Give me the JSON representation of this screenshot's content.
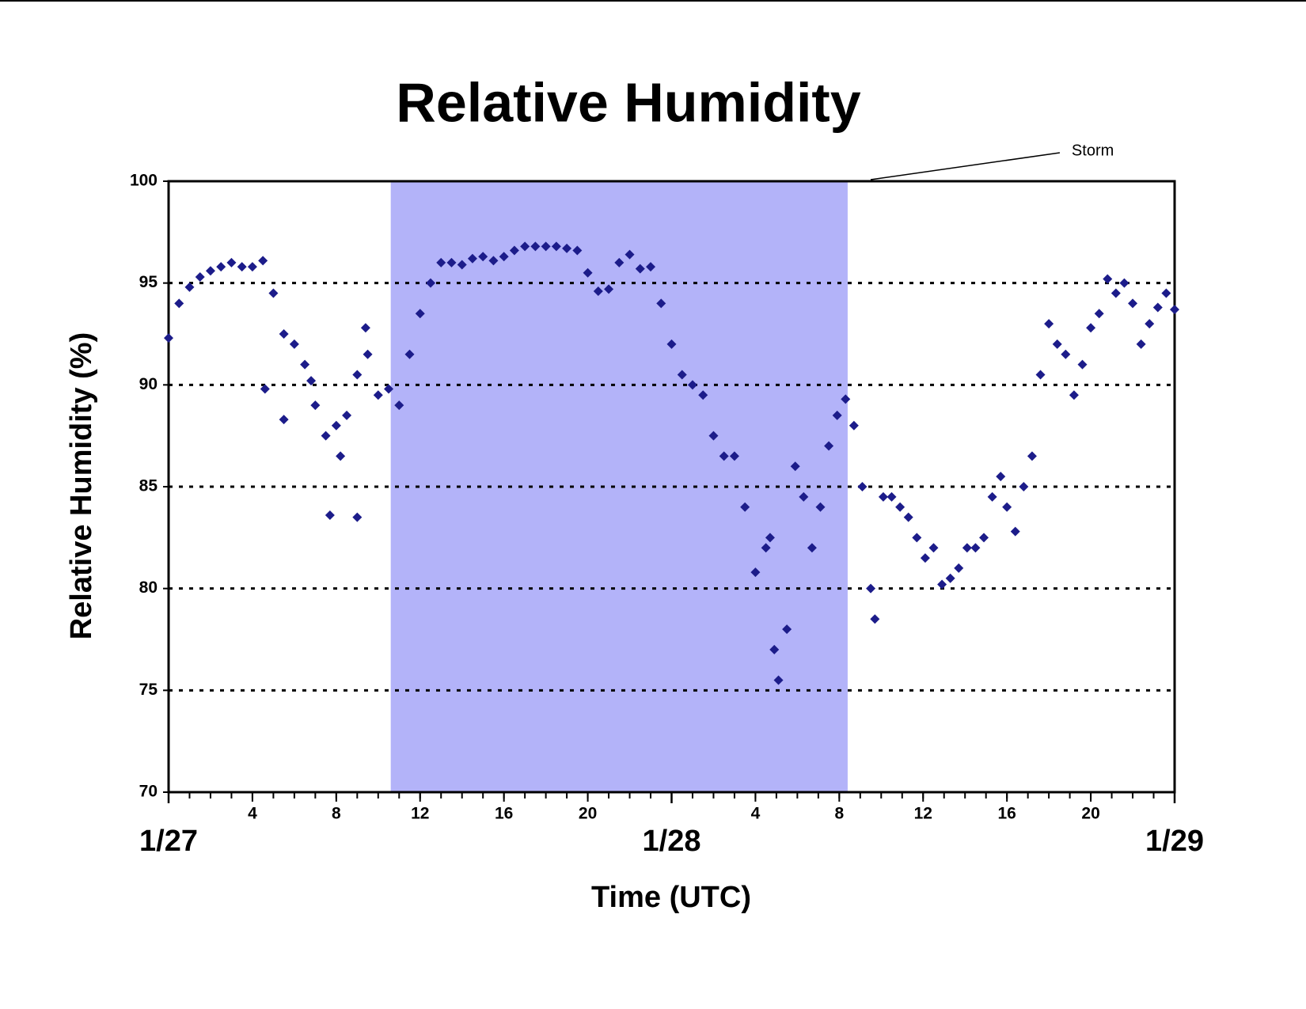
{
  "chart_data": {
    "type": "scatter",
    "title": "Relative Humidity",
    "y_label": "Relative Humidity (%)",
    "x_label": "Time (UTC)",
    "xlim": [
      0,
      48
    ],
    "ylim": [
      70,
      100
    ],
    "yticks": [
      70,
      75,
      80,
      85,
      90,
      95,
      100
    ],
    "grid": true,
    "xticks": [
      4,
      8,
      12,
      16,
      20,
      {
        "value": 28,
        "label": "4"
      },
      {
        "value": 32,
        "label": "8"
      },
      {
        "value": 36,
        "label": "12"
      },
      {
        "value": 40,
        "label": "16"
      },
      {
        "value": 44,
        "label": "20"
      }
    ],
    "xminorticks": [
      0,
      1,
      2,
      3,
      4,
      5,
      6,
      7,
      8,
      9,
      10,
      11,
      12,
      13,
      14,
      15,
      16,
      17,
      18,
      19,
      20,
      21,
      22,
      23,
      24,
      25,
      26,
      27,
      28,
      29,
      30,
      31,
      32,
      33,
      34,
      35,
      36,
      37,
      38,
      39,
      40,
      41,
      42,
      43,
      44,
      45,
      46,
      47,
      48
    ],
    "xdate_labels": [
      {
        "value": 0,
        "label": "1/27"
      },
      {
        "value": 24,
        "label": "1/28"
      },
      {
        "value": 48,
        "label": "1/29"
      }
    ],
    "shaded_region": {
      "label": "Storm",
      "x": [
        10.6,
        32.4
      ],
      "color": "#b3b3f9"
    },
    "series": [
      {
        "name": "Relative Humidity",
        "color": "#1c1c8a",
        "x": [
          0,
          0.5,
          1,
          1.5,
          2,
          2.5,
          3,
          3.5,
          4,
          4.5,
          5,
          5.5,
          6,
          6.5,
          7,
          7.5,
          8,
          8.5,
          9,
          9.5,
          10,
          10.5,
          11,
          11.5,
          12,
          12.5,
          13,
          13.5,
          14,
          14.5,
          15,
          15.5,
          16,
          16.5,
          17,
          17.5,
          18,
          18.5,
          19,
          19.5,
          20,
          20.5,
          21,
          21.5,
          22,
          22.5,
          23,
          23.5,
          24,
          24.5,
          25,
          25.5,
          26,
          26.5,
          27,
          27.5,
          28,
          28.5,
          28.7,
          28.9,
          29.1,
          29.5,
          29.9,
          30.3,
          30.7,
          31.1,
          31.5,
          31.9,
          32.3,
          32.7,
          33.1,
          33.5,
          33.7,
          34.1,
          34.5,
          34.9,
          35.3,
          35.7,
          36.1,
          36.5,
          36.9,
          37.3,
          37.7,
          38.1,
          38.5,
          38.9,
          39.3,
          39.7,
          40,
          40.4,
          40.8,
          41.2,
          41.6,
          42,
          42.4,
          42.8,
          43.2,
          43.6,
          44,
          44.4,
          44.8,
          45.2,
          45.6,
          46,
          46.4,
          46.8,
          47.2,
          47.6,
          48,
          5.5,
          7.7,
          9,
          8.2,
          6.8,
          9.4,
          4.6
        ],
        "values": [
          92.3,
          94,
          94.8,
          95.3,
          95.6,
          95.8,
          96,
          95.8,
          95.8,
          96.1,
          94.5,
          92.5,
          92,
          91,
          89,
          87.5,
          88,
          88.5,
          90.5,
          91.5,
          89.5,
          89.8,
          89,
          91.5,
          93.5,
          95,
          96,
          96,
          95.9,
          96.2,
          96.3,
          96.1,
          96.3,
          96.6,
          96.8,
          96.8,
          96.8,
          96.8,
          96.7,
          96.6,
          95.5,
          94.6,
          94.7,
          96,
          96.4,
          95.7,
          95.8,
          94,
          92,
          90.5,
          90,
          89.5,
          87.5,
          86.5,
          86.5,
          84,
          80.8,
          82,
          82.5,
          77,
          75.5,
          78,
          86,
          84.5,
          82,
          84,
          87,
          88.5,
          89.3,
          88,
          85,
          80,
          78.5,
          84.5,
          84.5,
          84,
          83.5,
          82.5,
          81.5,
          82,
          80.2,
          80.5,
          81,
          82,
          82,
          82.5,
          84.5,
          85.5,
          84,
          82.8,
          85,
          86.5,
          90.5,
          93,
          92,
          91.5,
          89.5,
          91,
          92.8,
          93.5,
          95.2,
          94.5,
          95,
          94,
          92,
          93,
          93.8,
          94.5,
          93.7,
          88.3,
          83.6,
          83.5,
          86.5,
          90.2,
          92.8,
          89.8
        ]
      }
    ]
  }
}
